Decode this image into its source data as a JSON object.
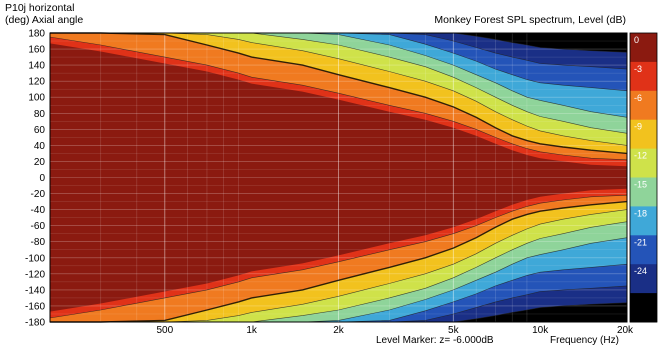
{
  "header": {
    "title": "P10j horizontal",
    "y_axis_label": "(deg)  Axial angle",
    "chart_title": "Monkey Forest SPL spectrum, Level  (dB)"
  },
  "footer": {
    "level_marker": "Level Marker:  z= -6.000dB",
    "x_axis_label": "Frequency  (Hz)"
  },
  "chart_data": {
    "type": "heatmap",
    "title": "Monkey Forest SPL spectrum, Level  (dB)",
    "xlabel": "Frequency  (Hz)",
    "ylabel": "(deg)  Axial angle",
    "x_scale": "log",
    "xlim": [
      200,
      20000
    ],
    "ylim": [
      -180,
      180
    ],
    "x_ticks": [
      {
        "value": 500,
        "label": "500"
      },
      {
        "value": 1000,
        "label": "1k"
      },
      {
        "value": 2000,
        "label": "2k"
      },
      {
        "value": 5000,
        "label": "5k"
      },
      {
        "value": 10000,
        "label": "10k"
      },
      {
        "value": 20000,
        "label": "20k"
      }
    ],
    "y_ticks": [
      180,
      160,
      140,
      120,
      100,
      80,
      60,
      40,
      20,
      0,
      -20,
      -40,
      -60,
      -80,
      -100,
      -120,
      -140,
      -160,
      -180
    ],
    "colorbar": {
      "levels_db": [
        0,
        -3,
        -6,
        -9,
        -12,
        -15,
        -18,
        -21,
        -24
      ],
      "labels": [
        "0",
        "-3",
        "-6",
        "-9",
        "-12",
        "-15",
        "-18",
        "-21",
        "-24"
      ],
      "colors": [
        "#8b1a10",
        "#e03218",
        "#f07a20",
        "#f2c21e",
        "#cfe24a",
        "#8fd49a",
        "#3fa8d8",
        "#2454b8",
        "#1a2f86",
        "#000000"
      ]
    },
    "level_marker_db": -6,
    "contour_series": [
      {
        "level_db": -3,
        "freq_hz": [
          200,
          300,
          500,
          700,
          900,
          1000,
          1500,
          2000,
          3000,
          4000,
          5000,
          6000,
          7000,
          8000,
          9000,
          10000,
          12000,
          15000,
          20000
        ],
        "angle_deg": [
          175,
          165,
          150,
          140,
          130,
          125,
          115,
          105,
          90,
          80,
          70,
          60,
          50,
          42,
          36,
          32,
          28,
          24,
          22
        ]
      },
      {
        "level_db": -6,
        "freq_hz": [
          200,
          300,
          500,
          700,
          900,
          1000,
          1500,
          2000,
          3000,
          4000,
          5000,
          6000,
          7000,
          8000,
          9000,
          10000,
          12000,
          15000,
          20000
        ],
        "angle_deg": [
          180,
          180,
          178,
          165,
          155,
          150,
          140,
          128,
          112,
          100,
          88,
          75,
          62,
          52,
          46,
          42,
          38,
          34,
          30
        ]
      },
      {
        "level_db": -9,
        "freq_hz": [
          200,
          500,
          700,
          900,
          1000,
          1500,
          2000,
          3000,
          4000,
          5000,
          6000,
          7000,
          8000,
          9000,
          10000,
          12000,
          15000,
          20000
        ],
        "angle_deg": [
          180,
          180,
          178,
          172,
          168,
          158,
          148,
          132,
          120,
          108,
          95,
          82,
          72,
          64,
          58,
          52,
          46,
          40
        ]
      },
      {
        "level_db": -12,
        "freq_hz": [
          200,
          1000,
          1500,
          2000,
          3000,
          4000,
          5000,
          6000,
          7000,
          8000,
          9000,
          10000,
          12000,
          15000,
          20000
        ],
        "angle_deg": [
          180,
          180,
          172,
          165,
          150,
          138,
          125,
          112,
          100,
          90,
          82,
          76,
          70,
          62,
          55
        ]
      },
      {
        "level_db": -15,
        "freq_hz": [
          200,
          1000,
          1500,
          2000,
          3000,
          4000,
          5000,
          6000,
          7000,
          8000,
          9000,
          10000,
          12000,
          15000,
          20000
        ],
        "angle_deg": [
          180,
          180,
          180,
          178,
          165,
          152,
          140,
          128,
          118,
          108,
          100,
          96,
          90,
          82,
          75
        ]
      },
      {
        "level_db": -18,
        "freq_hz": [
          200,
          1000,
          2000,
          3000,
          4000,
          5000,
          6000,
          7000,
          8000,
          9000,
          10000,
          12000,
          15000,
          20000
        ],
        "angle_deg": [
          180,
          180,
          180,
          178,
          166,
          155,
          145,
          135,
          128,
          122,
          118,
          115,
          112,
          108
        ]
      },
      {
        "level_db": -21,
        "freq_hz": [
          200,
          1000,
          2000,
          3000,
          4000,
          5000,
          6000,
          7000,
          8000,
          9000,
          10000,
          12000,
          15000,
          20000
        ],
        "angle_deg": [
          180,
          180,
          180,
          180,
          178,
          170,
          162,
          155,
          150,
          146,
          142,
          140,
          138,
          135
        ]
      },
      {
        "level_db": -24,
        "freq_hz": [
          200,
          1000,
          2000,
          3000,
          4000,
          5000,
          6000,
          7000,
          8000,
          9000,
          10000,
          12000,
          15000,
          20000
        ],
        "angle_deg": [
          180,
          180,
          180,
          180,
          180,
          180,
          176,
          172,
          168,
          165,
          162,
          160,
          158,
          156
        ]
      }
    ],
    "grid": true,
    "legend": "right colorbar"
  }
}
